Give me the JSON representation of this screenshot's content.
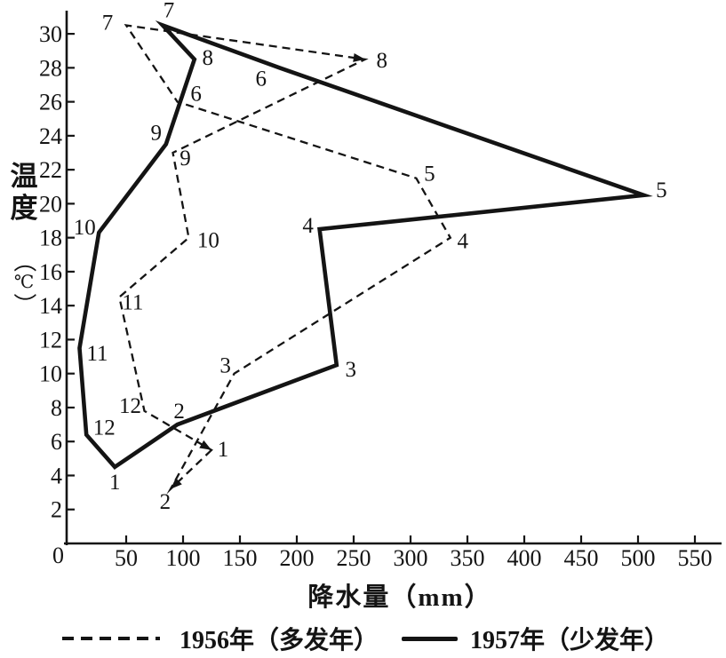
{
  "figure_ink": "#141414",
  "axes": {
    "y_title_chars": [
      "温",
      "度",
      "（",
      "℃",
      "）"
    ],
    "x_title": "降水量（mm）"
  },
  "legend": {
    "items": [
      {
        "label": "1956年（多发年）",
        "style": "dashed"
      },
      {
        "label": "1957年（少发年）",
        "style": "solid"
      }
    ]
  },
  "chart_data": {
    "type": "line",
    "title": "",
    "xlabel": "降水量（mm）",
    "ylabel": "温度（℃）",
    "xlim": [
      0,
      575
    ],
    "ylim": [
      0,
      31.5
    ],
    "x_ticks": [
      0,
      50,
      100,
      150,
      200,
      250,
      300,
      350,
      400,
      450,
      500,
      550
    ],
    "y_ticks": [
      2,
      4,
      6,
      8,
      10,
      12,
      14,
      16,
      18,
      20,
      22,
      24,
      26,
      28,
      30
    ],
    "grid": false,
    "legend_position": "bottom",
    "series": [
      {
        "name": "1956年（多发年）",
        "line_style": "dashed",
        "closed_loop": true,
        "points": [
          {
            "month": "1",
            "precip_mm": 125,
            "temp_c": 5.5,
            "arrow": true,
            "label_offset": [
              13,
              -1
            ]
          },
          {
            "month": "2",
            "precip_mm": 89,
            "temp_c": 3.2,
            "arrow": true,
            "label_offset": [
              -6,
              14
            ]
          },
          {
            "month": "3",
            "precip_mm": 145,
            "temp_c": 10,
            "label_offset": [
              -10,
              -9
            ]
          },
          {
            "month": "4",
            "precip_mm": 335,
            "temp_c": 18,
            "label_offset": [
              14,
              4
            ]
          },
          {
            "month": "5",
            "precip_mm": 305,
            "temp_c": 21.5,
            "label_offset": [
              15,
              -5
            ]
          },
          {
            "month": "6",
            "precip_mm": 95,
            "temp_c": 26,
            "label_offset": [
              21,
              -9
            ]
          },
          {
            "month": "7",
            "precip_mm": 50,
            "temp_c": 30.5,
            "label_offset": [
              -21,
              -3
            ]
          },
          {
            "month": "8",
            "precip_mm": 260,
            "temp_c": 28.5,
            "arrow": true,
            "label_offset": [
              19,
              1
            ]
          },
          {
            "month": "9",
            "precip_mm": 91,
            "temp_c": 23,
            "label_offset": [
              14,
              6
            ]
          },
          {
            "month": "10",
            "precip_mm": 105,
            "temp_c": 18,
            "label_offset": [
              22,
              3
            ]
          },
          {
            "month": "11",
            "precip_mm": 44,
            "temp_c": 14.5,
            "label_offset": [
              15,
              6
            ]
          },
          {
            "month": "12",
            "precip_mm": 66,
            "temp_c": 7.8,
            "label_offset": [
              -16,
              -6
            ]
          }
        ]
      },
      {
        "name": "1957年（少发年）",
        "line_style": "solid",
        "closed_loop": true,
        "points": [
          {
            "month": "1",
            "precip_mm": 40,
            "temp_c": 4.5,
            "label_offset": [
              0,
              17
            ]
          },
          {
            "month": "2",
            "precip_mm": 95,
            "temp_c": 7,
            "label_offset": [
              2,
              -15
            ]
          },
          {
            "month": "3",
            "precip_mm": 235,
            "temp_c": 10.5,
            "label_offset": [
              16,
              5
            ]
          },
          {
            "month": "4",
            "precip_mm": 220,
            "temp_c": 18.5,
            "label_offset": [
              -13,
              -4
            ]
          },
          {
            "month": "5",
            "precip_mm": 505,
            "temp_c": 20.5,
            "label_offset": [
              20,
              -6
            ]
          },
          {
            "month": "6",
            "precip_mm": 185,
            "temp_c": 28,
            "label_offset": [
              -21,
              12
            ]
          },
          {
            "month": "7",
            "precip_mm": 82,
            "temp_c": 30.5,
            "label_offset": [
              7,
              -17
            ]
          },
          {
            "month": "8",
            "precip_mm": 110,
            "temp_c": 28.5,
            "label_offset": [
              15,
              -2
            ]
          },
          {
            "month": "9",
            "precip_mm": 85,
            "temp_c": 23.5,
            "label_offset": [
              -11,
              -13
            ]
          },
          {
            "month": "10",
            "precip_mm": 26,
            "temp_c": 18.3,
            "label_offset": [
              -16,
              -6
            ]
          },
          {
            "month": "11",
            "precip_mm": 9,
            "temp_c": 11.5,
            "label_offset": [
              20,
              6
            ]
          },
          {
            "month": "12",
            "precip_mm": 15,
            "temp_c": 6.4,
            "label_offset": [
              20,
              -8
            ]
          }
        ]
      }
    ]
  }
}
